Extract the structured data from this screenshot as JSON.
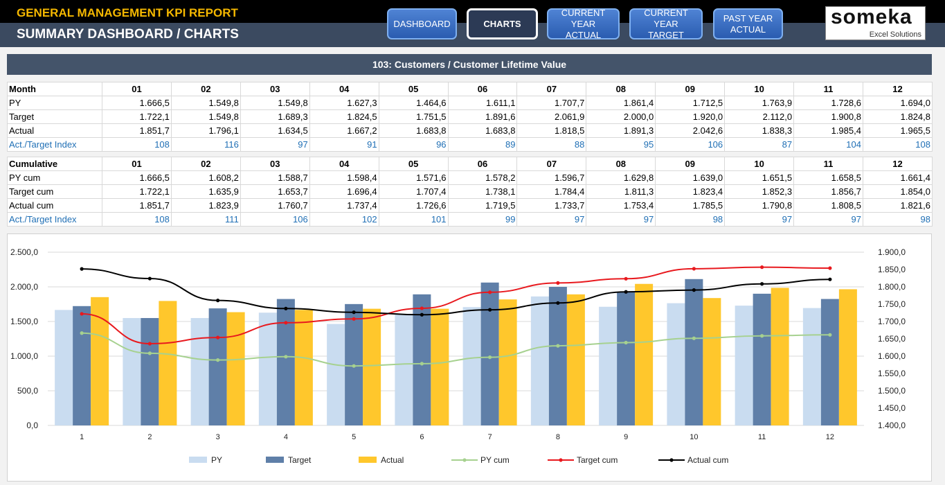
{
  "header": {
    "report_title": "GENERAL MANAGEMENT KPI REPORT",
    "subtitle": "SUMMARY DASHBOARD / CHARTS"
  },
  "nav": [
    {
      "label": "DASHBOARD",
      "active": false
    },
    {
      "label": "CHARTS",
      "active": true
    },
    {
      "label": "CURRENT YEAR\nACTUAL",
      "active": false
    },
    {
      "label": "CURRENT YEAR\nTARGET",
      "active": false
    },
    {
      "label": "PAST YEAR\nACTUAL",
      "active": false
    }
  ],
  "logo": {
    "name": "someka",
    "tagline": "Excel Solutions"
  },
  "kpi_title": "103: Customers / Customer Lifetime Value",
  "monthly": {
    "header": "Month",
    "months": [
      "01",
      "02",
      "03",
      "04",
      "05",
      "06",
      "07",
      "08",
      "09",
      "10",
      "11",
      "12"
    ],
    "rows": [
      {
        "label": "PY",
        "values": [
          "1.666,5",
          "1.549,8",
          "1.549,8",
          "1.627,3",
          "1.464,6",
          "1.611,1",
          "1.707,7",
          "1.861,4",
          "1.712,5",
          "1.763,9",
          "1.728,6",
          "1.694,0"
        ]
      },
      {
        "label": "Target",
        "values": [
          "1.722,1",
          "1.549,8",
          "1.689,3",
          "1.824,5",
          "1.751,5",
          "1.891,6",
          "2.061,9",
          "2.000,0",
          "1.920,0",
          "2.112,0",
          "1.900,8",
          "1.824,8"
        ]
      },
      {
        "label": "Actual",
        "values": [
          "1.851,7",
          "1.796,1",
          "1.634,5",
          "1.667,2",
          "1.683,8",
          "1.683,8",
          "1.818,5",
          "1.891,3",
          "2.042,6",
          "1.838,3",
          "1.985,4",
          "1.965,5"
        ]
      },
      {
        "label": "Act./Target Index",
        "values": [
          "108",
          "116",
          "97",
          "91",
          "96",
          "89",
          "88",
          "95",
          "106",
          "87",
          "104",
          "108"
        ]
      }
    ]
  },
  "cumulative": {
    "header": "Cumulative",
    "months": [
      "01",
      "02",
      "03",
      "04",
      "05",
      "06",
      "07",
      "08",
      "09",
      "10",
      "11",
      "12"
    ],
    "rows": [
      {
        "label": "PY cum",
        "values": [
          "1.666,5",
          "1.608,2",
          "1.588,7",
          "1.598,4",
          "1.571,6",
          "1.578,2",
          "1.596,7",
          "1.629,8",
          "1.639,0",
          "1.651,5",
          "1.658,5",
          "1.661,4"
        ]
      },
      {
        "label": "Target cum",
        "values": [
          "1.722,1",
          "1.635,9",
          "1.653,7",
          "1.696,4",
          "1.707,4",
          "1.738,1",
          "1.784,4",
          "1.811,3",
          "1.823,4",
          "1.852,3",
          "1.856,7",
          "1.854,0"
        ]
      },
      {
        "label": "Actual cum",
        "values": [
          "1.851,7",
          "1.823,9",
          "1.760,7",
          "1.737,4",
          "1.726,6",
          "1.719,5",
          "1.733,7",
          "1.753,4",
          "1.785,5",
          "1.790,8",
          "1.808,5",
          "1.821,6"
        ]
      },
      {
        "label": "Act./Target Index",
        "values": [
          "108",
          "111",
          "106",
          "102",
          "101",
          "99",
          "97",
          "97",
          "98",
          "97",
          "97",
          "98"
        ]
      }
    ]
  },
  "chart_data": {
    "type": "bar",
    "categories": [
      "1",
      "2",
      "3",
      "4",
      "5",
      "6",
      "7",
      "8",
      "9",
      "10",
      "11",
      "12"
    ],
    "series": [
      {
        "name": "PY",
        "kind": "bar",
        "axis": "left",
        "color": "#c9dcf0",
        "values": [
          1666.5,
          1549.8,
          1549.8,
          1627.3,
          1464.6,
          1611.1,
          1707.7,
          1861.4,
          1712.5,
          1763.9,
          1728.6,
          1694.0
        ]
      },
      {
        "name": "Target",
        "kind": "bar",
        "axis": "left",
        "color": "#5f7fa8",
        "values": [
          1722.1,
          1549.8,
          1689.3,
          1824.5,
          1751.5,
          1891.6,
          2061.9,
          2000.0,
          1920.0,
          2112.0,
          1900.8,
          1824.8
        ]
      },
      {
        "name": "Actual",
        "kind": "bar",
        "axis": "left",
        "color": "#ffc72c",
        "values": [
          1851.7,
          1796.1,
          1634.5,
          1667.2,
          1683.8,
          1683.8,
          1818.5,
          1891.3,
          2042.6,
          1838.3,
          1985.4,
          1965.5
        ]
      },
      {
        "name": "PY cum",
        "kind": "line",
        "axis": "right",
        "color": "#a6d18f",
        "values": [
          1666.5,
          1608.2,
          1588.7,
          1598.4,
          1571.6,
          1578.2,
          1596.7,
          1629.8,
          1639.0,
          1651.5,
          1658.5,
          1661.4
        ]
      },
      {
        "name": "Target cum",
        "kind": "line",
        "axis": "right",
        "color": "#e8191e",
        "values": [
          1722.1,
          1635.9,
          1653.7,
          1696.4,
          1707.4,
          1738.1,
          1784.4,
          1811.3,
          1823.4,
          1852.3,
          1856.7,
          1854.0
        ]
      },
      {
        "name": "Actual cum",
        "kind": "line",
        "axis": "right",
        "color": "#000000",
        "values": [
          1851.7,
          1823.9,
          1760.7,
          1737.4,
          1726.6,
          1719.5,
          1733.7,
          1753.4,
          1785.5,
          1790.8,
          1808.5,
          1821.6
        ]
      }
    ],
    "y_left": {
      "min": 0,
      "max": 2500,
      "ticks": [
        "0,0",
        "500,0",
        "1.000,0",
        "1.500,0",
        "2.000,0",
        "2.500,0"
      ]
    },
    "y_right": {
      "min": 1400,
      "max": 1900,
      "ticks": [
        "1.400,0",
        "1.450,0",
        "1.500,0",
        "1.550,0",
        "1.600,0",
        "1.650,0",
        "1.700,0",
        "1.750,0",
        "1.800,0",
        "1.850,0",
        "1.900,0"
      ]
    },
    "grid": true,
    "legend": "bottom"
  }
}
